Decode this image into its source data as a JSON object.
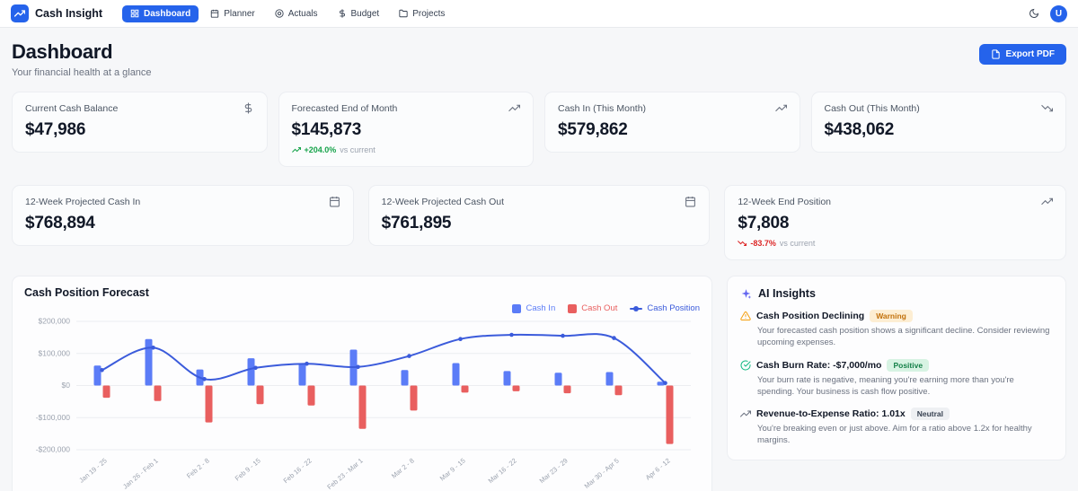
{
  "navbar": {
    "brand": "Cash Insight",
    "items": [
      {
        "label": "Dashboard",
        "icon": "grid-icon",
        "active": true
      },
      {
        "label": "Planner",
        "icon": "calendar-icon",
        "active": false
      },
      {
        "label": "Actuals",
        "icon": "target-icon",
        "active": false
      },
      {
        "label": "Budget",
        "icon": "dollar-icon",
        "active": false
      },
      {
        "label": "Projects",
        "icon": "folder-icon",
        "active": false
      }
    ],
    "avatar_initial": "U"
  },
  "header": {
    "title": "Dashboard",
    "subtitle": "Your financial health at a glance",
    "export_label": "Export PDF"
  },
  "stats_row1": [
    {
      "label": "Current Cash Balance",
      "value": "$47,986",
      "icon": "dollar-icon"
    },
    {
      "label": "Forecasted End of Month",
      "value": "$145,873",
      "icon": "trending-up-icon",
      "delta": "+204.0%",
      "delta_note": "vs current",
      "delta_direction": "up"
    },
    {
      "label": "Cash In (This Month)",
      "value": "$579,862",
      "icon": "trending-up-icon"
    },
    {
      "label": "Cash Out (This Month)",
      "value": "$438,062",
      "icon": "trending-down-icon"
    }
  ],
  "stats_row2": [
    {
      "label": "12-Week Projected Cash In",
      "value": "$768,894",
      "icon": "calendar-icon"
    },
    {
      "label": "12-Week Projected Cash Out",
      "value": "$761,895",
      "icon": "calendar-icon"
    },
    {
      "label": "12-Week End Position",
      "value": "$7,808",
      "icon": "trending-up-icon",
      "delta": "-83.7%",
      "delta_note": "vs current",
      "delta_direction": "down"
    }
  ],
  "chart_data": {
    "type": "bar+line",
    "title": "Cash Position Forecast",
    "categories": [
      "Jan 19 - 25",
      "Jan 26 - Feb 1",
      "Feb 2 - 8",
      "Feb 9 - 15",
      "Feb 16 - 22",
      "Feb 23 - Mar 1",
      "Mar 2 - 8",
      "Mar 9 - 15",
      "Mar 16 - 22",
      "Mar 23 - 29",
      "Mar 30 - Apr 5",
      "Apr 6 - 12"
    ],
    "series": [
      {
        "name": "Cash In",
        "type": "bar",
        "color": "#5b7cf7",
        "values": [
          62000,
          145000,
          50000,
          85000,
          68000,
          112000,
          48000,
          70000,
          45000,
          40000,
          42000,
          12000
        ]
      },
      {
        "name": "Cash Out",
        "type": "bar",
        "color": "#e95f5f",
        "values": [
          -38000,
          -48000,
          -115000,
          -58000,
          -62000,
          -135000,
          -78000,
          -22000,
          -18000,
          -24000,
          -30000,
          -182000
        ]
      },
      {
        "name": "Cash Position",
        "type": "line",
        "color": "#3b5bdb",
        "values": [
          48000,
          118000,
          20000,
          55000,
          68000,
          58000,
          92000,
          145000,
          158000,
          155000,
          148000,
          7808
        ]
      }
    ],
    "ylim": [
      -200000,
      200000
    ],
    "ytick_step": 100000,
    "ytick_labels": [
      "$200,000",
      "$100,000",
      "$0",
      "-$100,000",
      "-$200,000"
    ],
    "grid": true,
    "legend_position": "top-right"
  },
  "ai_insights": {
    "title": "AI Insights",
    "items": [
      {
        "title": "Cash Position Declining",
        "badge": "Warning",
        "icon": "alert-triangle-icon",
        "body": "Your forecasted cash position shows a significant decline. Consider reviewing upcoming expenses."
      },
      {
        "title": "Cash Burn Rate: -$7,000/mo",
        "badge": "Positive",
        "icon": "check-circle-icon",
        "body": "Your burn rate is negative, meaning you're earning more than you're spending. Your business is cash flow positive."
      },
      {
        "title": "Revenue-to-Expense Ratio: 1.01x",
        "badge": "Neutral",
        "icon": "trending-up-icon",
        "body": "You're breaking even or just above. Aim for a ratio above 1.2x for healthy margins."
      }
    ]
  },
  "theme": {
    "accent": "#2563eb",
    "positive": "#16a34a",
    "negative": "#dc2626",
    "cash_in_color": "#5b7cf7",
    "cash_out_color": "#e95f5f",
    "cash_position_color": "#3b5bdb"
  }
}
